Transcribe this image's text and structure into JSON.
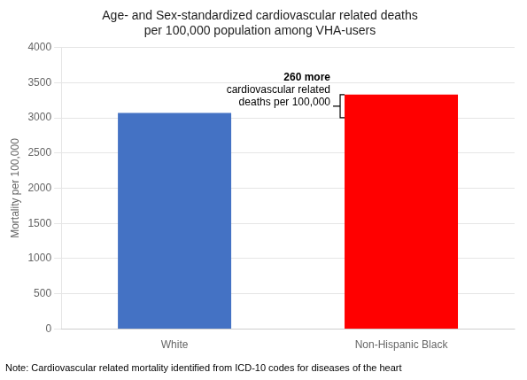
{
  "chart_data": {
    "type": "bar",
    "title": "Age- and Sex-standardized cardiovascular related deaths\nper 100,000 population among VHA-users",
    "categories": [
      "White",
      "Non-Hispanic Black"
    ],
    "values": [
      3070,
      3330
    ],
    "colors": [
      "#4472C4",
      "#FF0000"
    ],
    "ylabel": "Mortality per 100,000",
    "ylim": [
      0,
      4000
    ],
    "yticks": [
      0,
      500,
      1000,
      1500,
      2000,
      2500,
      3000,
      3500,
      4000
    ],
    "grid": true,
    "annotations": [
      "260 more",
      "cardiovascular related\ndeaths per 100,000"
    ],
    "note": "Note: Cardiovascular related mortality identified from ICD-10 codes for diseases of the heart"
  }
}
